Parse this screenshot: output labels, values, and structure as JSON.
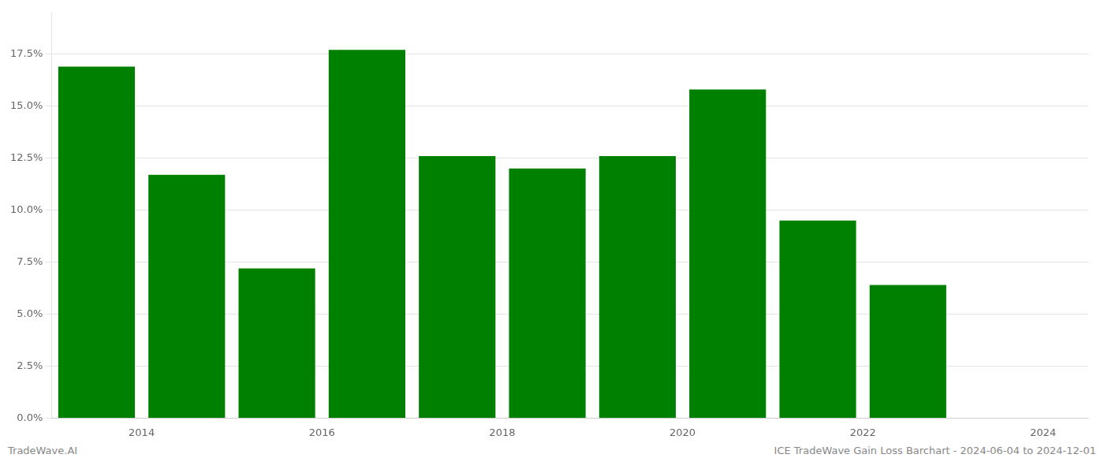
{
  "chart_data": {
    "type": "bar",
    "x": [
      2013.5,
      2014.5,
      2015.5,
      2016.5,
      2017.5,
      2018.5,
      2019.5,
      2020.5,
      2021.5,
      2022.5
    ],
    "values": [
      0.169,
      0.117,
      0.072,
      0.177,
      0.126,
      0.12,
      0.126,
      0.158,
      0.095,
      0.064
    ],
    "color": "#008000",
    "xlim": [
      2013.0,
      2024.5
    ],
    "xticks": [
      2014,
      2016,
      2018,
      2020,
      2022,
      2024
    ],
    "ylim": [
      0,
      0.195
    ],
    "yticks": [
      {
        "value": 0.0,
        "label": "0.0%"
      },
      {
        "value": 0.025,
        "label": "2.5%"
      },
      {
        "value": 0.05,
        "label": "5.0%"
      },
      {
        "value": 0.075,
        "label": "7.5%"
      },
      {
        "value": 0.1,
        "label": "10.0%"
      },
      {
        "value": 0.125,
        "label": "12.5%"
      },
      {
        "value": 0.15,
        "label": "15.0%"
      },
      {
        "value": 0.175,
        "label": "17.5%"
      }
    ],
    "grid": true,
    "annotations": [
      "TradeWave.AI",
      "ICE TradeWave Gain Loss Barchart - 2024-06-04 to 2024-12-01"
    ]
  }
}
